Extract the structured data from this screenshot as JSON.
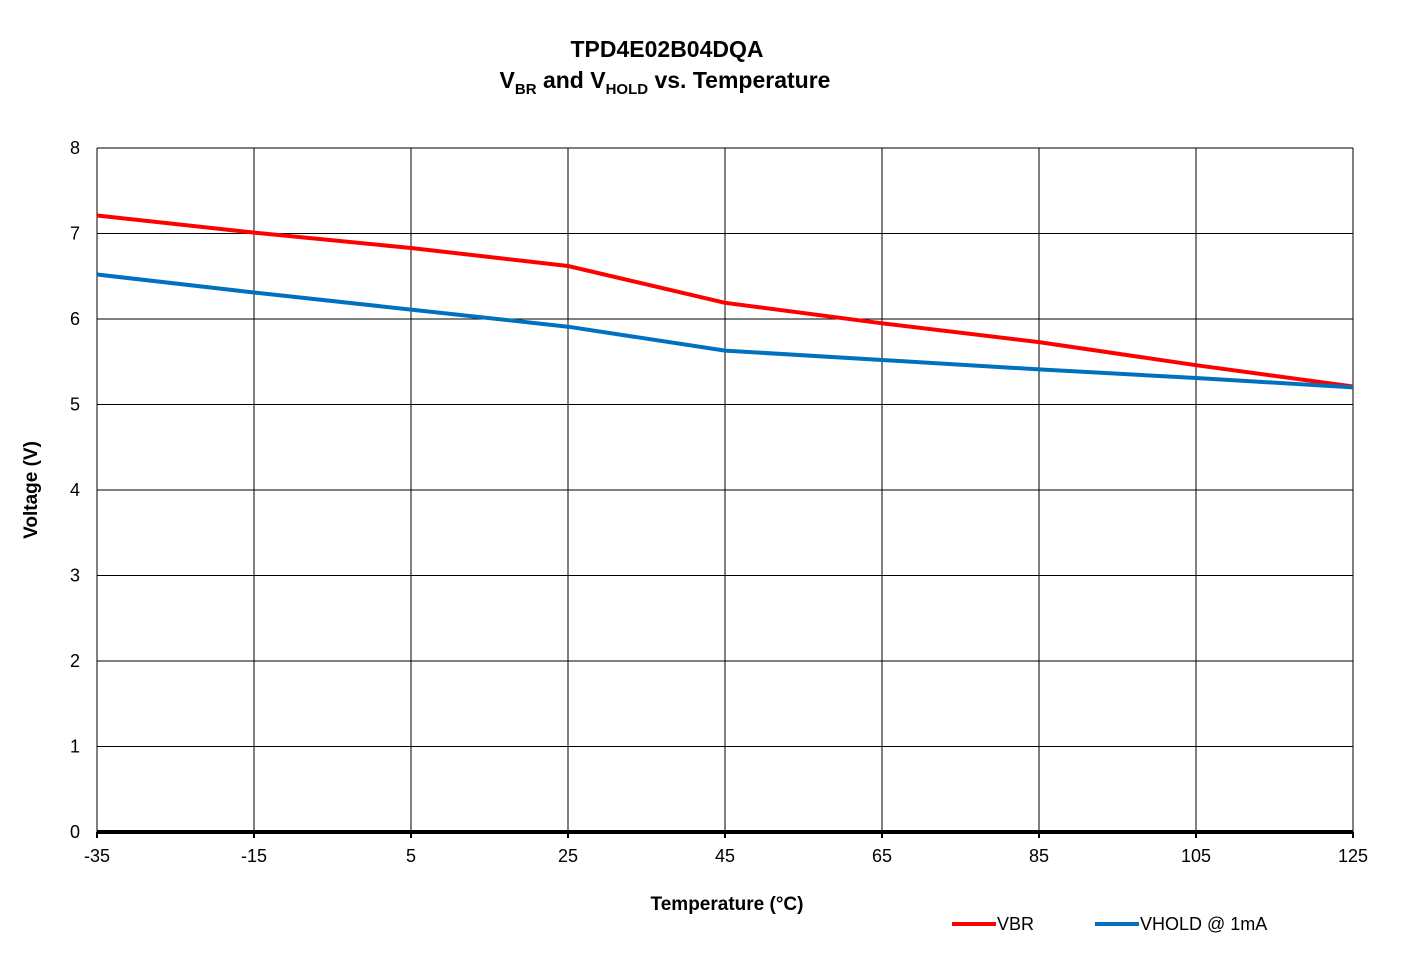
{
  "chart_data": {
    "type": "line",
    "title_line1": "TPD4E02B04DQA",
    "title_line2": {
      "v1": "V",
      "v1_sub": "BR",
      "and": " and ",
      "v2": "V",
      "v2_sub": "HOLD",
      "rest": " vs. Temperature"
    },
    "xlabel": "Temperature (°C)",
    "ylabel": "Voltage (V)",
    "xlim": [
      -35,
      125
    ],
    "ylim": [
      0,
      8
    ],
    "x_ticks": [
      "-35",
      "-15",
      "5",
      "25",
      "45",
      "65",
      "85",
      "105",
      "125"
    ],
    "y_ticks": [
      "0",
      "1",
      "2",
      "3",
      "4",
      "5",
      "6",
      "7",
      "8"
    ],
    "grid": true,
    "legend_position": "bottom-right",
    "series": [
      {
        "name": "VBR",
        "color": "#ff0000",
        "x": [
          -35,
          -15,
          5,
          25,
          45,
          65,
          85,
          105,
          125
        ],
        "y": [
          7.21,
          7.01,
          6.83,
          6.62,
          6.19,
          5.95,
          5.73,
          5.46,
          5.21
        ]
      },
      {
        "name": "VHOLD @ 1mA",
        "color": "#0070c0",
        "x": [
          -35,
          -15,
          5,
          25,
          45,
          65,
          85,
          105,
          125
        ],
        "y": [
          6.52,
          6.31,
          6.11,
          5.91,
          5.63,
          5.52,
          5.41,
          5.31,
          5.2
        ]
      }
    ]
  }
}
